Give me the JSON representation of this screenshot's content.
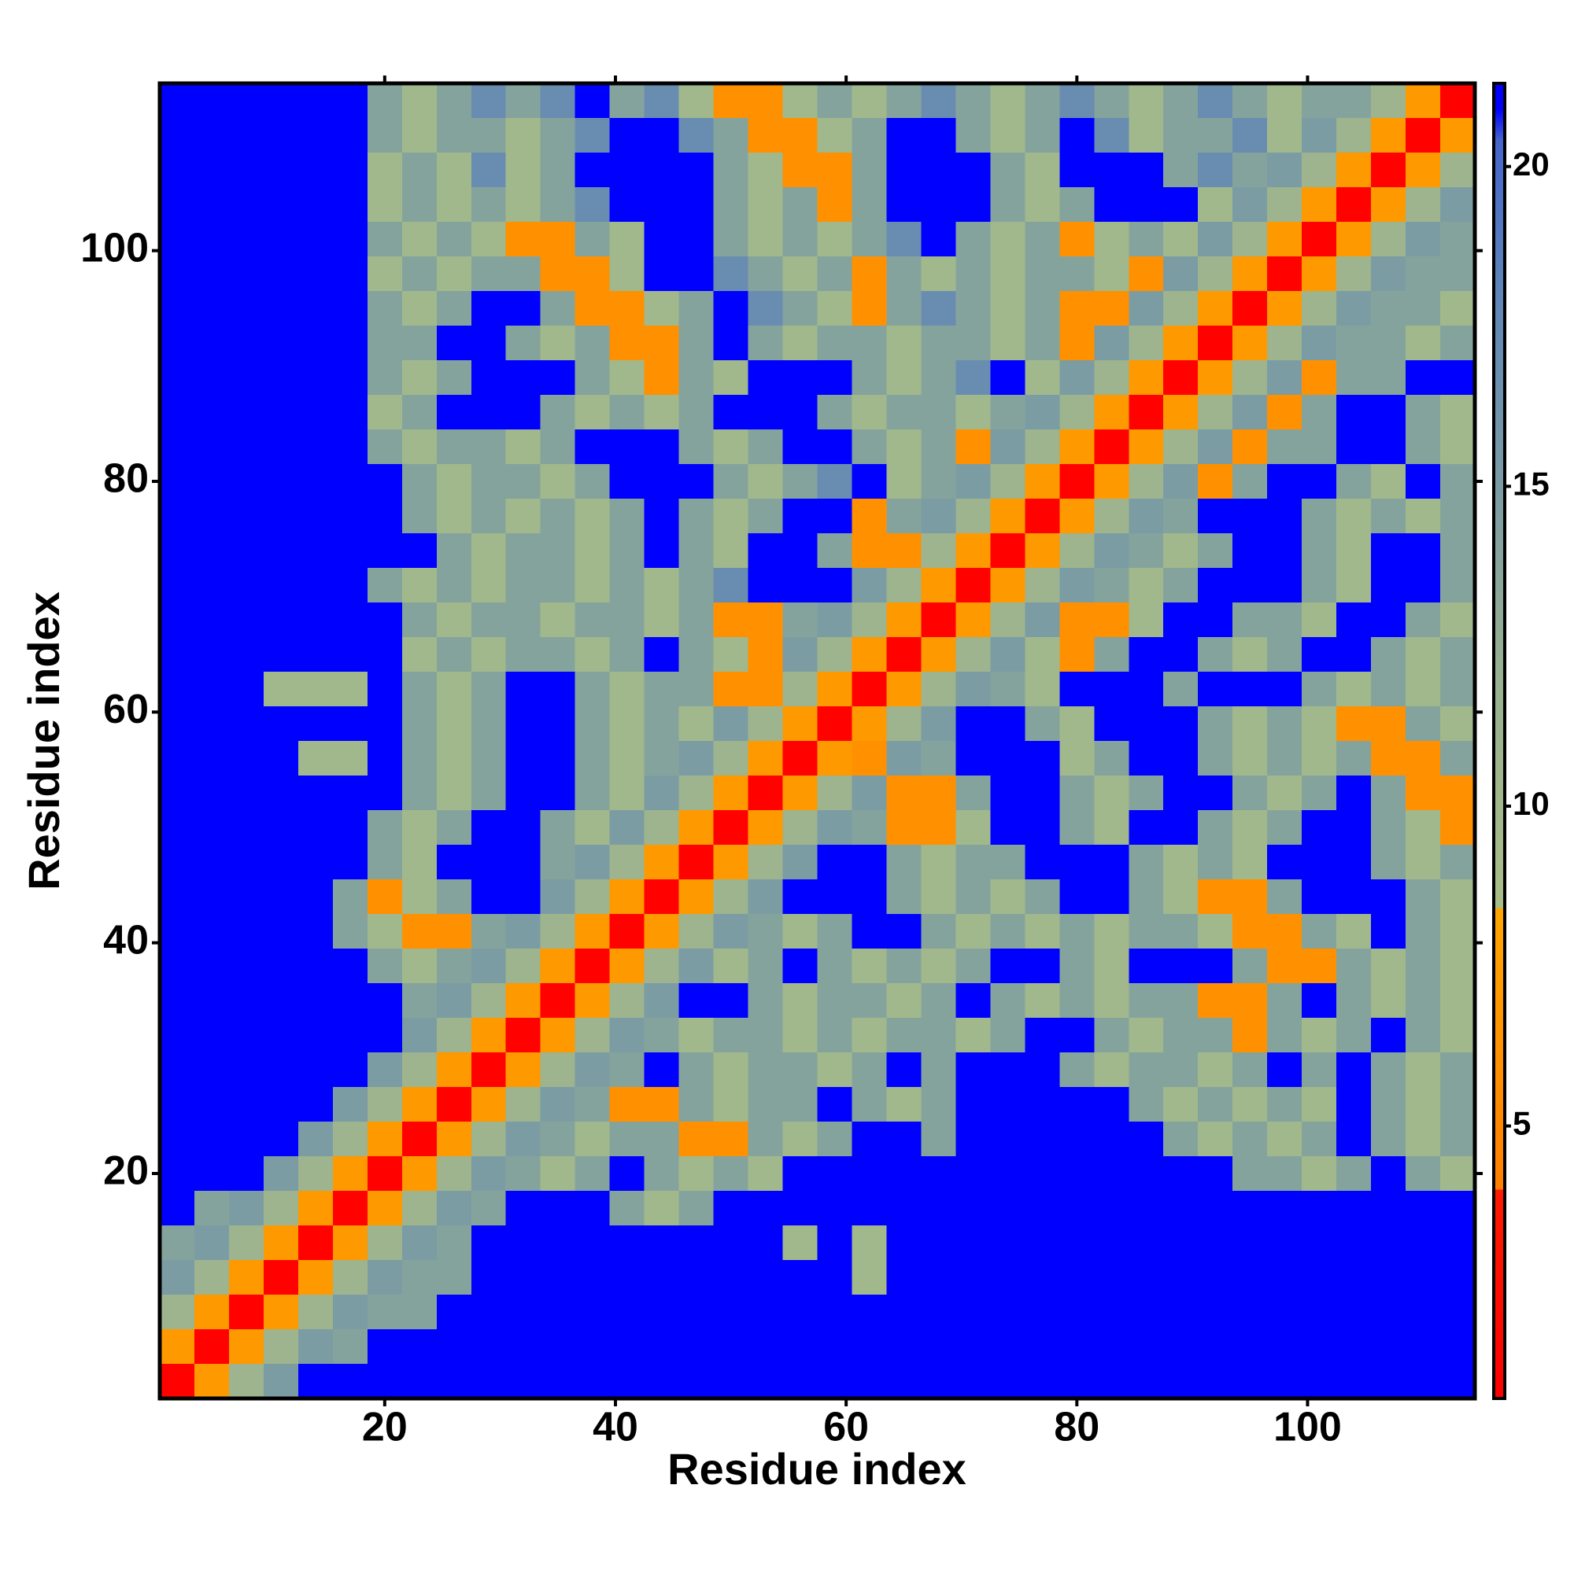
{
  "chart_data": {
    "type": "heatmap",
    "x_label": "Residue index",
    "y_label": "Residue index",
    "x": [
      2,
      5,
      8,
      11,
      14,
      17,
      20,
      23,
      26,
      29,
      32,
      35,
      38,
      41,
      44,
      47,
      50,
      53,
      56,
      59,
      62,
      65,
      68,
      71,
      74,
      77,
      80,
      83,
      86,
      89,
      92,
      95,
      98,
      101,
      104,
      107,
      110,
      113
    ],
    "y": [
      113,
      110,
      107,
      104,
      101,
      98,
      95,
      92,
      89,
      86,
      83,
      80,
      77,
      74,
      71,
      68,
      65,
      62,
      59,
      56,
      53,
      50,
      47,
      44,
      41,
      38,
      35,
      32,
      29,
      26,
      23,
      20,
      17,
      14,
      11,
      8,
      5,
      2
    ],
    "z": [
      [
        21,
        21,
        21,
        21,
        21,
        21,
        14,
        10,
        14,
        17,
        14,
        17,
        21,
        14,
        17,
        10,
        6,
        6,
        10,
        14,
        10,
        14,
        17,
        14,
        10,
        14,
        17,
        14,
        10,
        14,
        17,
        14,
        10,
        14,
        14,
        11,
        7,
        1
      ],
      [
        21,
        21,
        21,
        21,
        21,
        21,
        14,
        10,
        14,
        14,
        10,
        14,
        17,
        21,
        21,
        17,
        14,
        6,
        6,
        10,
        14,
        21,
        21,
        14,
        10,
        14,
        21,
        17,
        10,
        14,
        14,
        17,
        10,
        15,
        11,
        7,
        1,
        7
      ],
      [
        21,
        21,
        21,
        21,
        21,
        21,
        10,
        14,
        10,
        17,
        10,
        14,
        21,
        21,
        21,
        21,
        14,
        10,
        6,
        6,
        14,
        21,
        21,
        21,
        14,
        10,
        21,
        21,
        21,
        14,
        17,
        14,
        15,
        11,
        7,
        1,
        7,
        11
      ],
      [
        21,
        21,
        21,
        21,
        21,
        21,
        10,
        14,
        10,
        14,
        10,
        14,
        17,
        21,
        21,
        21,
        14,
        10,
        14,
        6,
        14,
        21,
        21,
        21,
        14,
        10,
        14,
        21,
        21,
        21,
        10,
        15,
        11,
        7,
        1,
        7,
        11,
        15
      ],
      [
        21,
        21,
        21,
        21,
        21,
        21,
        14,
        10,
        14,
        10,
        6,
        6,
        14,
        10,
        21,
        21,
        14,
        10,
        14,
        10,
        14,
        17,
        21,
        14,
        10,
        14,
        6,
        10,
        14,
        10,
        15,
        11,
        7,
        1,
        7,
        11,
        15,
        14
      ],
      [
        21,
        21,
        21,
        21,
        21,
        21,
        10,
        14,
        10,
        14,
        14,
        6,
        6,
        10,
        21,
        21,
        17,
        14,
        10,
        14,
        6,
        14,
        10,
        14,
        10,
        14,
        14,
        10,
        6,
        15,
        11,
        7,
        1,
        7,
        11,
        15,
        14,
        14
      ],
      [
        21,
        21,
        21,
        21,
        21,
        21,
        14,
        10,
        14,
        21,
        21,
        14,
        6,
        6,
        10,
        14,
        21,
        17,
        14,
        10,
        6,
        14,
        17,
        14,
        10,
        14,
        6,
        6,
        15,
        11,
        7,
        1,
        7,
        11,
        15,
        14,
        14,
        10
      ],
      [
        21,
        21,
        21,
        21,
        21,
        21,
        14,
        14,
        21,
        21,
        14,
        10,
        14,
        6,
        6,
        14,
        21,
        14,
        10,
        14,
        14,
        10,
        14,
        14,
        10,
        14,
        6,
        15,
        11,
        7,
        1,
        7,
        11,
        15,
        14,
        14,
        10,
        14
      ],
      [
        21,
        21,
        21,
        21,
        21,
        21,
        14,
        10,
        14,
        21,
        21,
        21,
        14,
        10,
        6,
        14,
        10,
        21,
        21,
        21,
        14,
        10,
        14,
        17,
        21,
        10,
        15,
        11,
        7,
        1,
        7,
        11,
        15,
        6,
        14,
        14,
        21,
        21
      ],
      [
        21,
        21,
        21,
        21,
        21,
        21,
        10,
        14,
        21,
        21,
        21,
        14,
        10,
        14,
        10,
        14,
        21,
        21,
        21,
        14,
        10,
        14,
        14,
        10,
        14,
        15,
        11,
        7,
        1,
        7,
        11,
        15,
        6,
        14,
        21,
        21,
        14,
        10
      ],
      [
        21,
        21,
        21,
        21,
        21,
        21,
        14,
        10,
        14,
        14,
        10,
        14,
        21,
        21,
        21,
        14,
        10,
        14,
        21,
        21,
        14,
        10,
        14,
        6,
        15,
        11,
        7,
        1,
        7,
        11,
        15,
        6,
        14,
        14,
        21,
        21,
        14,
        10
      ],
      [
        21,
        21,
        21,
        21,
        21,
        21,
        21,
        14,
        10,
        14,
        14,
        10,
        14,
        21,
        21,
        21,
        14,
        10,
        14,
        17,
        21,
        10,
        14,
        15,
        11,
        7,
        1,
        7,
        11,
        15,
        6,
        14,
        21,
        21,
        14,
        10,
        21,
        14
      ],
      [
        21,
        21,
        21,
        21,
        21,
        21,
        21,
        14,
        10,
        14,
        10,
        14,
        10,
        14,
        21,
        14,
        10,
        14,
        21,
        21,
        6,
        14,
        15,
        11,
        7,
        1,
        7,
        11,
        15,
        14,
        21,
        21,
        21,
        14,
        10,
        14,
        10,
        14
      ],
      [
        21,
        21,
        21,
        21,
        21,
        21,
        21,
        21,
        14,
        10,
        14,
        14,
        10,
        14,
        21,
        14,
        10,
        21,
        21,
        14,
        6,
        6,
        11,
        7,
        1,
        7,
        11,
        15,
        14,
        10,
        14,
        21,
        21,
        14,
        10,
        21,
        21,
        14
      ],
      [
        21,
        21,
        21,
        21,
        21,
        21,
        14,
        10,
        14,
        10,
        14,
        14,
        10,
        14,
        10,
        14,
        17,
        21,
        21,
        21,
        15,
        11,
        7,
        1,
        7,
        11,
        15,
        14,
        10,
        14,
        21,
        21,
        21,
        14,
        10,
        21,
        21,
        14
      ],
      [
        21,
        21,
        21,
        21,
        21,
        21,
        21,
        14,
        10,
        14,
        14,
        10,
        14,
        14,
        10,
        14,
        6,
        6,
        14,
        15,
        11,
        7,
        1,
        7,
        11,
        15,
        6,
        6,
        10,
        21,
        21,
        14,
        14,
        10,
        21,
        21,
        14,
        10
      ],
      [
        21,
        21,
        21,
        21,
        21,
        21,
        21,
        10,
        14,
        10,
        14,
        14,
        10,
        14,
        21,
        14,
        10,
        6,
        15,
        11,
        7,
        1,
        7,
        11,
        15,
        10,
        6,
        14,
        21,
        21,
        14,
        10,
        14,
        21,
        21,
        14,
        10,
        14
      ],
      [
        21,
        21,
        21,
        10,
        10,
        10,
        21,
        14,
        10,
        14,
        21,
        21,
        14,
        10,
        14,
        14,
        6,
        6,
        11,
        7,
        1,
        7,
        11,
        15,
        14,
        10,
        21,
        21,
        21,
        14,
        21,
        21,
        21,
        14,
        10,
        14,
        10,
        14
      ],
      [
        21,
        21,
        21,
        21,
        21,
        21,
        21,
        14,
        10,
        14,
        21,
        21,
        14,
        10,
        14,
        10,
        15,
        11,
        7,
        1,
        7,
        11,
        15,
        21,
        21,
        14,
        10,
        21,
        21,
        21,
        14,
        10,
        14,
        10,
        6,
        6,
        14,
        10
      ],
      [
        21,
        21,
        21,
        21,
        10,
        10,
        21,
        14,
        10,
        14,
        21,
        21,
        14,
        10,
        14,
        15,
        11,
        7,
        1,
        7,
        6,
        15,
        14,
        21,
        21,
        21,
        10,
        14,
        21,
        21,
        14,
        10,
        14,
        10,
        14,
        6,
        6,
        14
      ],
      [
        21,
        21,
        21,
        21,
        21,
        21,
        21,
        14,
        10,
        14,
        21,
        21,
        14,
        10,
        15,
        11,
        7,
        1,
        7,
        11,
        15,
        6,
        6,
        14,
        21,
        21,
        14,
        10,
        14,
        21,
        21,
        14,
        10,
        14,
        21,
        14,
        6,
        6
      ],
      [
        21,
        21,
        21,
        21,
        21,
        21,
        14,
        10,
        14,
        21,
        21,
        14,
        10,
        15,
        11,
        7,
        1,
        7,
        11,
        15,
        14,
        6,
        6,
        10,
        21,
        21,
        14,
        10,
        21,
        21,
        14,
        10,
        14,
        21,
        21,
        14,
        10,
        6
      ],
      [
        21,
        21,
        21,
        21,
        21,
        21,
        14,
        10,
        21,
        21,
        21,
        14,
        15,
        11,
        7,
        1,
        7,
        11,
        15,
        21,
        21,
        14,
        10,
        14,
        14,
        21,
        21,
        21,
        14,
        10,
        14,
        10,
        21,
        21,
        21,
        14,
        10,
        14
      ],
      [
        21,
        21,
        21,
        21,
        21,
        14,
        6,
        10,
        14,
        21,
        21,
        15,
        11,
        7,
        1,
        7,
        11,
        15,
        21,
        21,
        21,
        14,
        10,
        14,
        10,
        14,
        21,
        21,
        14,
        10,
        6,
        6,
        14,
        21,
        21,
        21,
        14,
        10
      ],
      [
        21,
        21,
        21,
        21,
        21,
        14,
        10,
        6,
        6,
        14,
        15,
        11,
        7,
        1,
        7,
        11,
        15,
        14,
        10,
        14,
        21,
        21,
        14,
        10,
        14,
        10,
        14,
        10,
        14,
        14,
        10,
        6,
        6,
        14,
        10,
        21,
        14,
        10
      ],
      [
        21,
        21,
        21,
        21,
        21,
        21,
        14,
        10,
        14,
        15,
        11,
        7,
        1,
        7,
        11,
        15,
        10,
        14,
        21,
        14,
        10,
        14,
        10,
        14,
        21,
        21,
        14,
        10,
        21,
        21,
        21,
        14,
        6,
        6,
        14,
        10,
        14,
        10
      ],
      [
        21,
        21,
        21,
        21,
        21,
        21,
        21,
        14,
        15,
        11,
        7,
        1,
        7,
        11,
        15,
        21,
        21,
        14,
        10,
        14,
        14,
        10,
        14,
        21,
        14,
        10,
        14,
        10,
        14,
        14,
        6,
        6,
        14,
        21,
        14,
        10,
        14,
        10
      ],
      [
        21,
        21,
        21,
        21,
        21,
        21,
        21,
        15,
        11,
        7,
        1,
        7,
        11,
        15,
        14,
        10,
        14,
        14,
        10,
        14,
        10,
        14,
        14,
        10,
        14,
        21,
        21,
        14,
        10,
        14,
        14,
        6,
        14,
        10,
        14,
        21,
        14,
        10
      ],
      [
        21,
        21,
        21,
        21,
        21,
        21,
        15,
        11,
        7,
        1,
        7,
        11,
        15,
        14,
        21,
        14,
        10,
        14,
        14,
        10,
        14,
        21,
        14,
        21,
        21,
        21,
        14,
        10,
        14,
        14,
        10,
        14,
        21,
        14,
        21,
        14,
        10,
        14
      ],
      [
        21,
        21,
        21,
        21,
        21,
        15,
        11,
        7,
        1,
        7,
        11,
        15,
        14,
        6,
        6,
        14,
        10,
        14,
        14,
        21,
        14,
        10,
        14,
        21,
        21,
        21,
        21,
        21,
        14,
        10,
        14,
        10,
        14,
        10,
        21,
        14,
        10,
        14
      ],
      [
        21,
        21,
        21,
        21,
        15,
        11,
        7,
        1,
        7,
        11,
        15,
        14,
        10,
        14,
        14,
        6,
        6,
        14,
        10,
        14,
        21,
        21,
        14,
        21,
        21,
        21,
        21,
        21,
        21,
        14,
        10,
        14,
        10,
        14,
        21,
        14,
        10,
        14
      ],
      [
        21,
        21,
        21,
        15,
        11,
        7,
        1,
        7,
        11,
        15,
        14,
        10,
        14,
        21,
        14,
        10,
        14,
        10,
        21,
        21,
        21,
        21,
        21,
        21,
        21,
        21,
        21,
        21,
        21,
        21,
        21,
        14,
        14,
        10,
        14,
        21,
        14,
        10
      ],
      [
        21,
        14,
        15,
        11,
        7,
        1,
        7,
        11,
        15,
        14,
        21,
        21,
        21,
        14,
        10,
        14,
        21,
        21,
        21,
        21,
        21,
        21,
        21,
        21,
        21,
        21,
        21,
        21,
        21,
        21,
        21,
        21,
        21,
        21,
        21,
        21,
        21,
        21
      ],
      [
        14,
        15,
        11,
        7,
        1,
        7,
        11,
        15,
        14,
        21,
        21,
        21,
        21,
        21,
        21,
        21,
        21,
        21,
        10,
        21,
        10,
        21,
        21,
        21,
        21,
        21,
        21,
        21,
        21,
        21,
        21,
        21,
        21,
        21,
        21,
        21,
        21,
        21
      ],
      [
        15,
        11,
        7,
        1,
        7,
        11,
        15,
        14,
        14,
        21,
        21,
        21,
        21,
        21,
        21,
        21,
        21,
        21,
        21,
        21,
        10,
        21,
        21,
        21,
        21,
        21,
        21,
        21,
        21,
        21,
        21,
        21,
        21,
        21,
        21,
        21,
        21,
        21
      ],
      [
        11,
        7,
        1,
        7,
        11,
        15,
        14,
        14,
        21,
        21,
        21,
        21,
        21,
        21,
        21,
        21,
        21,
        21,
        21,
        21,
        21,
        21,
        21,
        21,
        21,
        21,
        21,
        21,
        21,
        21,
        21,
        21,
        21,
        21,
        21,
        21,
        21,
        21
      ],
      [
        7,
        1,
        7,
        11,
        15,
        14,
        21,
        21,
        21,
        21,
        21,
        21,
        21,
        21,
        21,
        21,
        21,
        21,
        21,
        21,
        21,
        21,
        21,
        21,
        21,
        21,
        21,
        21,
        21,
        21,
        21,
        21,
        21,
        21,
        21,
        21,
        21,
        21
      ],
      [
        1,
        7,
        11,
        15,
        21,
        21,
        21,
        21,
        21,
        21,
        21,
        21,
        21,
        21,
        21,
        21,
        21,
        21,
        21,
        21,
        21,
        21,
        21,
        21,
        21,
        21,
        21,
        21,
        21,
        21,
        21,
        21,
        21,
        21,
        21,
        21,
        21,
        21
      ]
    ],
    "xlim": [
      0.5,
      114.5
    ],
    "ylim": [
      0.5,
      114.5
    ],
    "xticks": [
      20,
      40,
      60,
      80,
      100
    ],
    "yticks": [
      20,
      40,
      60,
      80,
      100
    ],
    "colorbar": {
      "zlim": [
        0.74,
        21.3
      ],
      "ticks": [
        5,
        10,
        15,
        20
      ]
    },
    "colorscale": [
      [
        0.74,
        "#ff0000"
      ],
      [
        4,
        "#ff1a00"
      ],
      [
        4.01,
        "#ff7f00"
      ],
      [
        8.4,
        "#ffa500"
      ],
      [
        8.41,
        "#a9bd88"
      ],
      [
        12,
        "#98b190"
      ],
      [
        18,
        "#5f86b8"
      ],
      [
        20.4,
        "#4466cc"
      ],
      [
        20.9,
        "#0000ff"
      ],
      [
        21.3,
        "#0000ff"
      ]
    ]
  }
}
